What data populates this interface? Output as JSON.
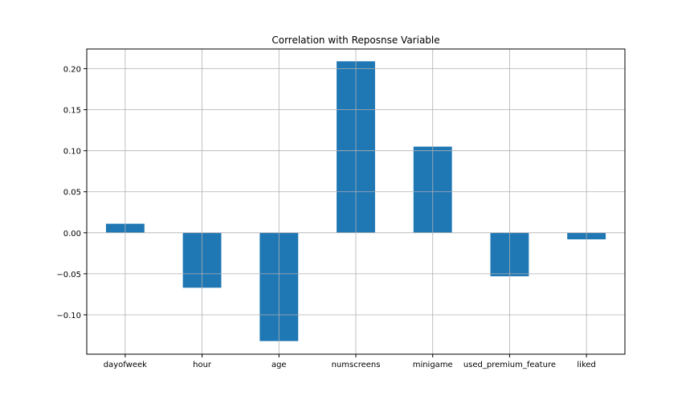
{
  "chart_data": {
    "type": "bar",
    "title": "Correlation with Reposnse Variable",
    "xlabel": "",
    "ylabel": "",
    "categories": [
      "dayofweek",
      "hour",
      "age",
      "numscreens",
      "minigame",
      "used_premium_feature",
      "liked"
    ],
    "values": [
      0.011,
      -0.067,
      -0.132,
      0.209,
      0.105,
      -0.053,
      -0.008
    ],
    "ylim": [
      -0.148,
      0.224
    ],
    "yticks": [
      -0.1,
      -0.05,
      0.0,
      0.05,
      0.1,
      0.15,
      0.2
    ],
    "ytick_labels": [
      "−0.10",
      "−0.05",
      "0.00",
      "0.05",
      "0.10",
      "0.15",
      "0.20"
    ],
    "grid": true,
    "legend": "none",
    "colors": {
      "bar": "#1f77b4",
      "grid": "#b0b0b0",
      "axes": "#000000"
    }
  }
}
